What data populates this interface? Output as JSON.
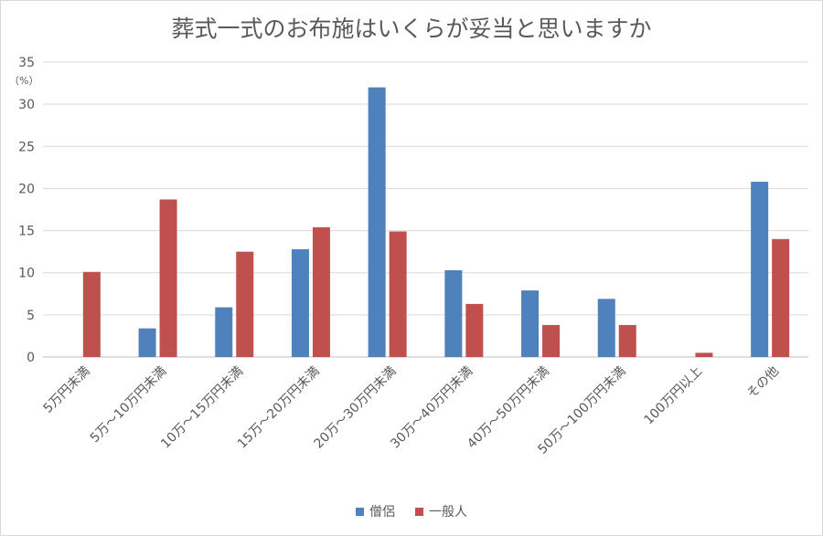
{
  "chart_data": {
    "type": "bar",
    "title": "葬式一式のお布施はいくらが妥当と思いますか",
    "unit_label": "（%）",
    "ylim": [
      0,
      35
    ],
    "yticks": [
      0,
      5,
      10,
      15,
      20,
      25,
      30,
      35
    ],
    "grid": true,
    "legend_position": "bottom",
    "categories": [
      "5万円未満",
      "5万～10万円未満",
      "10万～15万円未満",
      "15万～20万円未満",
      "20万～30万円未満",
      "30万～40万円未満",
      "40万～50万円未満",
      "50万～100万円未満",
      "100万円以上",
      "その他"
    ],
    "series": [
      {
        "name": "僧侶",
        "color": "#4f81bd",
        "values": [
          0,
          3.4,
          5.9,
          12.8,
          32.0,
          10.3,
          7.9,
          6.9,
          0,
          20.8
        ]
      },
      {
        "name": "一般人",
        "color": "#c0504d",
        "values": [
          10.1,
          18.7,
          12.5,
          15.4,
          14.9,
          6.3,
          3.8,
          3.8,
          0.5,
          14.0
        ]
      }
    ]
  }
}
